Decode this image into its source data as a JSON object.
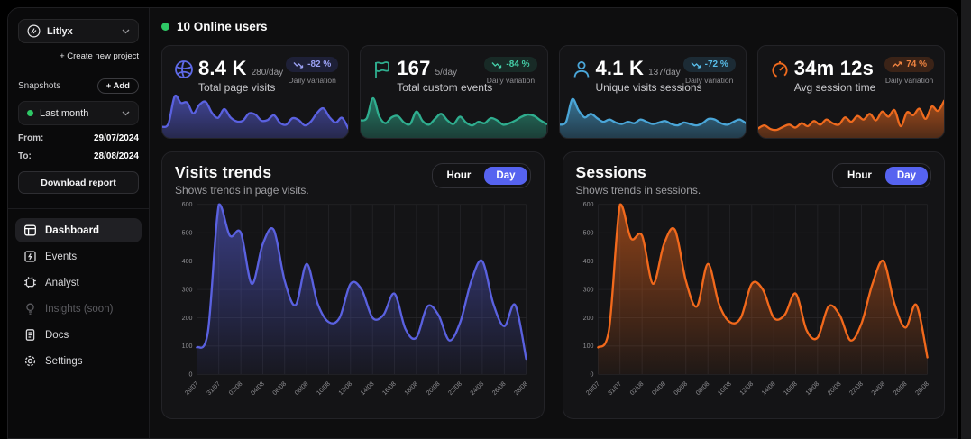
{
  "colors": {
    "indigo": "#5a61e0",
    "teal": "#2fae8f",
    "blue": "#4aa6d8",
    "orange": "#ee6a1e",
    "green": "#2ec866",
    "toggle_active": "#5663f0",
    "grid": "#27272b",
    "tick_text": "#8f8f93"
  },
  "sidebar": {
    "project": {
      "name": "Litlyx"
    },
    "create_project_label": "+ Create new project",
    "snapshots_label": "Snapshots",
    "add_label": "+ Add",
    "period": {
      "value": "Last month"
    },
    "from_label": "From:",
    "from_value": "29/07/2024",
    "to_label": "To:",
    "to_value": "28/08/2024",
    "download_label": "Download report",
    "nav": [
      {
        "label": "Dashboard",
        "icon": "dashboard-icon",
        "active": true
      },
      {
        "label": "Events",
        "icon": "events-icon"
      },
      {
        "label": "Analyst",
        "icon": "analyst-icon"
      },
      {
        "label": "Insights (soon)",
        "icon": "insights-icon",
        "disabled": true
      },
      {
        "label": "Docs",
        "icon": "docs-icon"
      },
      {
        "label": "Settings",
        "icon": "settings-icon"
      }
    ]
  },
  "header": {
    "online_users": "10 Online users"
  },
  "stat_cards": [
    {
      "icon": "globe-icon",
      "value": "8.4 K",
      "per_day": "280/day",
      "label": "Total page visits",
      "badge": "-82 %",
      "badge_trend": "down",
      "badge_caption": "Daily variation",
      "color": "#5a61e0"
    },
    {
      "icon": "flag-icon",
      "value": "167",
      "per_day": "5/day",
      "label": "Total custom events",
      "badge": "-84 %",
      "badge_trend": "down",
      "badge_caption": "Daily variation",
      "color": "#2fae8f"
    },
    {
      "icon": "user-icon",
      "value": "4.1 K",
      "per_day": "137/day",
      "label": "Unique visits sessions",
      "badge": "-72 %",
      "badge_trend": "down",
      "badge_caption": "Daily variation",
      "color": "#4aa6d8"
    },
    {
      "icon": "timer-icon",
      "value": "34m 12s",
      "per_day": "",
      "label": "Avg session time",
      "badge": "74 %",
      "badge_trend": "up",
      "badge_caption": "Daily variation",
      "color": "#ee6a1e"
    }
  ],
  "chart_data": [
    {
      "type": "area",
      "title": "Total page visits sparkline",
      "color": "#5a61e0",
      "values": [
        16,
        25,
        100,
        82,
        83,
        53,
        77,
        85,
        55,
        41,
        65,
        42,
        31,
        33,
        53,
        50,
        33,
        35,
        48,
        27,
        22,
        40,
        35,
        20,
        31,
        55,
        67,
        42,
        28,
        41,
        12
      ],
      "ylim": [
        0,
        110
      ]
    },
    {
      "type": "area",
      "title": "Total custom events sparkline",
      "color": "#2fae8f",
      "values": [
        34,
        40,
        95,
        45,
        26,
        42,
        46,
        28,
        24,
        58,
        32,
        22,
        38,
        52,
        34,
        24,
        44,
        28,
        20,
        30,
        26,
        40,
        34,
        22,
        26,
        34,
        44,
        50,
        46,
        34,
        24
      ],
      "ylim": [
        0,
        110
      ]
    },
    {
      "type": "area",
      "title": "Unique visits sessions sparkline",
      "color": "#4aa6d8",
      "values": [
        22,
        30,
        92,
        62,
        42,
        52,
        40,
        30,
        36,
        28,
        24,
        30,
        26,
        36,
        30,
        24,
        28,
        32,
        24,
        20,
        28,
        24,
        20,
        26,
        38,
        36,
        26,
        22,
        30,
        36,
        26
      ],
      "ylim": [
        0,
        110
      ]
    },
    {
      "type": "area",
      "title": "Avg session time sparkline",
      "color": "#ee6a1e",
      "values": [
        12,
        20,
        10,
        8,
        16,
        22,
        14,
        26,
        18,
        32,
        22,
        36,
        26,
        22,
        42,
        30,
        46,
        36,
        52,
        34,
        58,
        44,
        62,
        18,
        56,
        48,
        66,
        38,
        72,
        60,
        88
      ],
      "ylim": [
        0,
        110
      ]
    },
    {
      "type": "area",
      "title": "Visits trends",
      "subtitle": "Shows trends in page visits.",
      "toggle": {
        "options": [
          "Hour",
          "Day"
        ],
        "active": "Day"
      },
      "color": "#5a61e0",
      "ylim": [
        0,
        600
      ],
      "yticks": [
        0,
        100,
        200,
        300,
        400,
        500,
        600
      ],
      "x": [
        "29/07",
        "30/07",
        "31/07",
        "01/08",
        "02/08",
        "03/08",
        "04/08",
        "05/08",
        "06/08",
        "07/08",
        "08/08",
        "09/08",
        "10/08",
        "11/08",
        "12/08",
        "13/08",
        "14/08",
        "15/08",
        "16/08",
        "17/08",
        "18/08",
        "19/08",
        "20/08",
        "21/08",
        "22/08",
        "23/08",
        "24/08",
        "25/08",
        "26/08",
        "27/08",
        "28/08"
      ],
      "tick_labels": [
        "29/07",
        "31/07",
        "02/08",
        "04/08",
        "06/08",
        "08/08",
        "10/08",
        "12/08",
        "14/08",
        "16/08",
        "18/08",
        "20/08",
        "22/08",
        "24/08",
        "26/08",
        "28/08"
      ],
      "values": [
        95,
        150,
        600,
        490,
        500,
        320,
        460,
        510,
        330,
        245,
        390,
        250,
        185,
        200,
        320,
        300,
        200,
        210,
        285,
        160,
        130,
        240,
        210,
        120,
        185,
        330,
        400,
        250,
        170,
        245,
        55
      ]
    },
    {
      "type": "area",
      "title": "Sessions",
      "subtitle": "Shows trends in sessions.",
      "toggle": {
        "options": [
          "Hour",
          "Day"
        ],
        "active": "Day"
      },
      "color": "#f2691c",
      "ylim": [
        0,
        600
      ],
      "yticks": [
        0,
        100,
        200,
        300,
        400,
        500,
        600
      ],
      "x": [
        "29/07",
        "30/07",
        "31/07",
        "01/08",
        "02/08",
        "03/08",
        "04/08",
        "05/08",
        "06/08",
        "07/08",
        "08/08",
        "09/08",
        "10/08",
        "11/08",
        "12/08",
        "13/08",
        "14/08",
        "15/08",
        "16/08",
        "17/08",
        "18/08",
        "19/08",
        "20/08",
        "21/08",
        "22/08",
        "23/08",
        "24/08",
        "25/08",
        "26/08",
        "27/08",
        "28/08"
      ],
      "tick_labels": [
        "29/07",
        "31/07",
        "02/08",
        "04/08",
        "06/08",
        "08/08",
        "10/08",
        "12/08",
        "14/08",
        "16/08",
        "18/08",
        "20/08",
        "22/08",
        "24/08",
        "26/08",
        "28/08"
      ],
      "values": [
        95,
        160,
        600,
        480,
        490,
        320,
        460,
        510,
        330,
        240,
        390,
        250,
        185,
        200,
        320,
        300,
        200,
        210,
        285,
        155,
        130,
        240,
        210,
        120,
        180,
        320,
        400,
        250,
        165,
        245,
        60
      ]
    }
  ]
}
